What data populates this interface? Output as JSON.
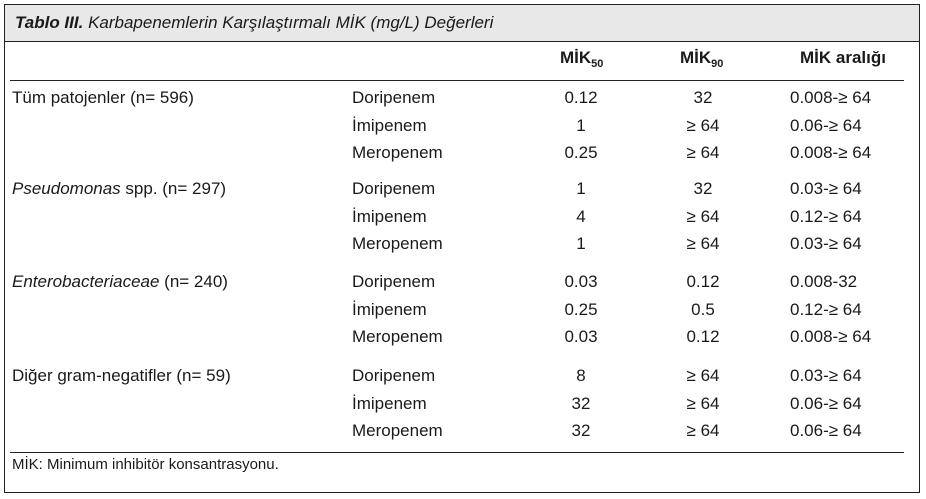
{
  "title": {
    "label": "Tablo III.",
    "text": "Karbapenemlerin Karşılaştırmalı MİK (mg/L) Değerleri"
  },
  "headers": {
    "mic50": {
      "base": "MİK",
      "sub": "50"
    },
    "mic90": {
      "base": "MİK",
      "sub": "90"
    },
    "range": "MİK aralığı"
  },
  "groups": [
    {
      "name_italic": "",
      "name_rest": "Tüm patojenler (n= 596)",
      "rows": [
        {
          "drug": "Doripenem",
          "mic50": "0.12",
          "mic90": "32",
          "range": "0.008-≥ 64"
        },
        {
          "drug": "İmipenem",
          "mic50": "1",
          "mic90": "≥ 64",
          "range": "0.06-≥ 64"
        },
        {
          "drug": "Meropenem",
          "mic50": "0.25",
          "mic90": "≥ 64",
          "range": "0.008-≥ 64"
        }
      ]
    },
    {
      "name_italic": "Pseudomonas",
      "name_rest": " spp. (n= 297)",
      "rows": [
        {
          "drug": "Doripenem",
          "mic50": "1",
          "mic90": "32",
          "range": "0.03-≥ 64"
        },
        {
          "drug": "İmipenem",
          "mic50": "4",
          "mic90": "≥ 64",
          "range": "0.12-≥ 64"
        },
        {
          "drug": "Meropenem",
          "mic50": "1",
          "mic90": "≥ 64",
          "range": "0.03-≥ 64"
        }
      ]
    },
    {
      "name_italic": "Enterobacteriaceae",
      "name_rest": " (n= 240)",
      "rows": [
        {
          "drug": "Doripenem",
          "mic50": "0.03",
          "mic90": "0.12",
          "range": "0.008-32"
        },
        {
          "drug": "İmipenem",
          "mic50": "0.25",
          "mic90": "0.5",
          "range": "0.12-≥ 64"
        },
        {
          "drug": "Meropenem",
          "mic50": "0.03",
          "mic90": "0.12",
          "range": "0.008-≥ 64"
        }
      ]
    },
    {
      "name_italic": "",
      "name_rest": "Diğer gram-negatifler (n= 59)",
      "rows": [
        {
          "drug": "Doripenem",
          "mic50": "8",
          "mic90": "≥ 64",
          "range": "0.03-≥ 64"
        },
        {
          "drug": "İmipenem",
          "mic50": "32",
          "mic90": "≥ 64",
          "range": "0.06-≥ 64"
        },
        {
          "drug": "Meropenem",
          "mic50": "32",
          "mic90": "≥ 64",
          "range": "0.06-≥ 64"
        }
      ]
    }
  ],
  "footnote": "MİK: Minimum inhibitör konsantrasyonu."
}
